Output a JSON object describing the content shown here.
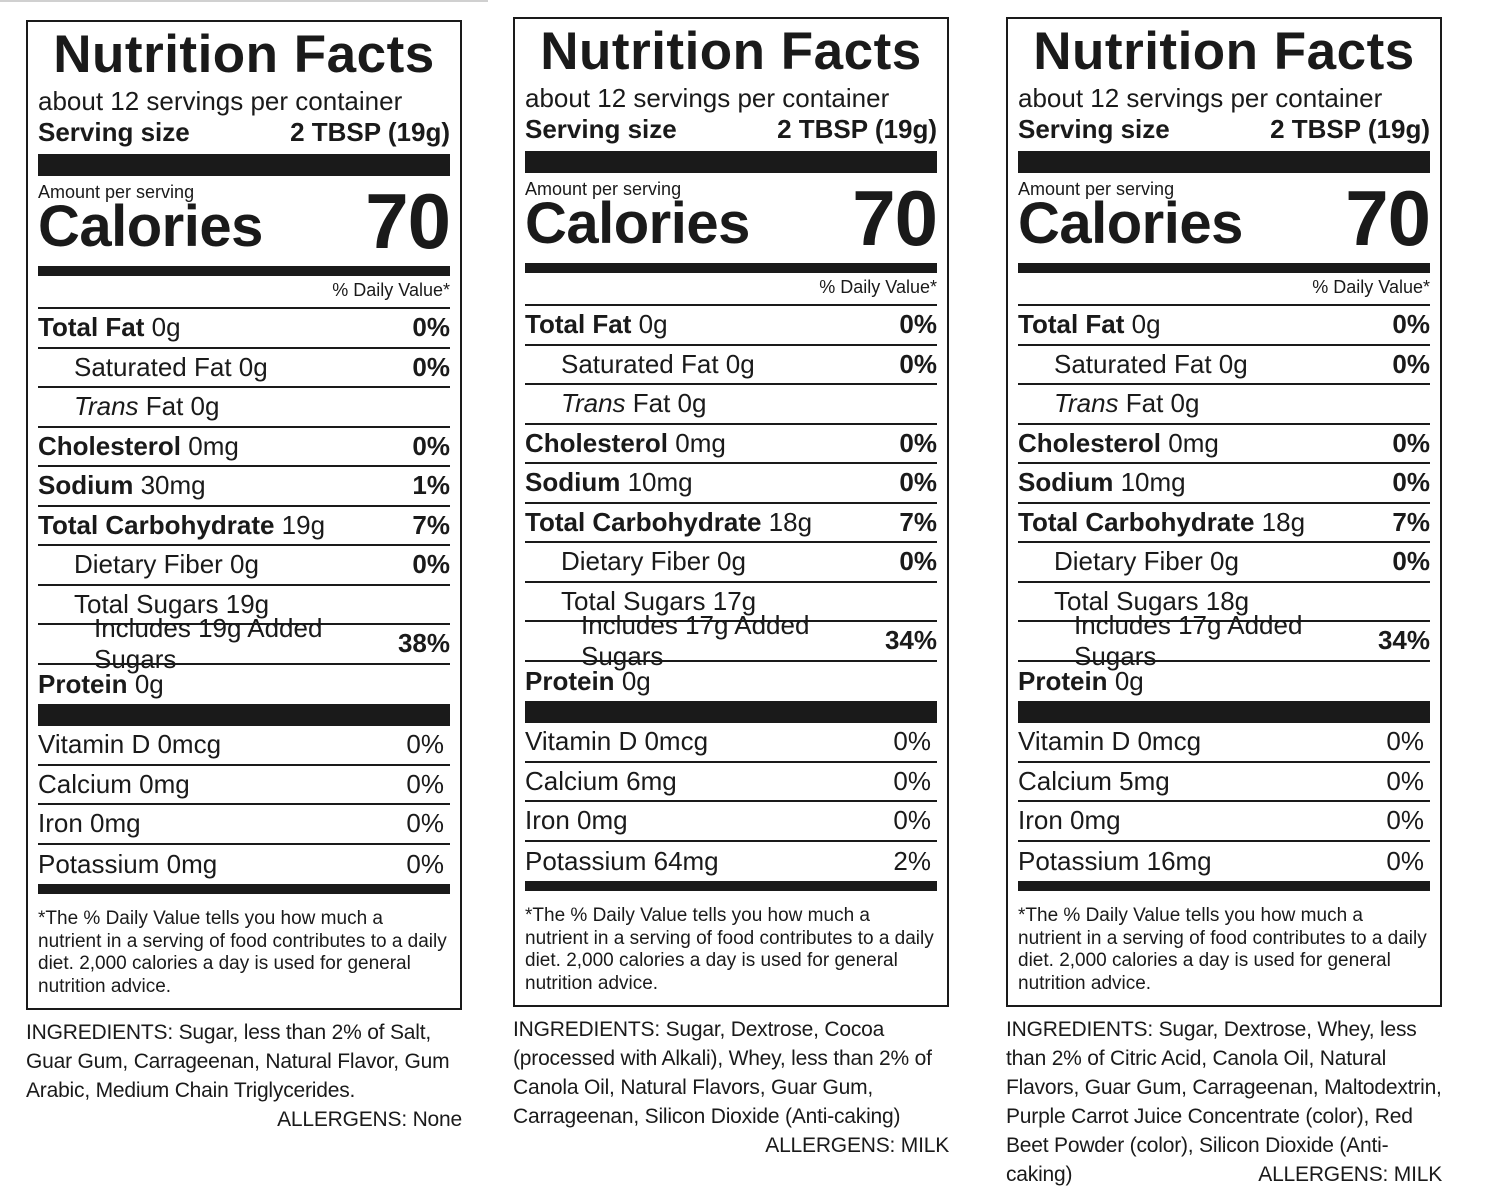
{
  "labels": [
    {
      "title": "Nutrition Facts",
      "servings": "about 12 servings per container",
      "serving_size_label": "Serving size",
      "serving_size_value": "2 TBSP (19g)",
      "amount_per_serving": "Amount per serving",
      "calories_label": "Calories",
      "calories_value": "70",
      "dv_header": "% Daily Value*",
      "total_fat": {
        "label": "Total Fat",
        "amount": "0g",
        "dv": "0%"
      },
      "saturated_fat": {
        "label": "Saturated Fat 0g",
        "dv": "0%"
      },
      "trans_fat": {
        "label_italic": "Trans",
        "label_rest": " Fat 0g"
      },
      "cholesterol": {
        "label": "Cholesterol",
        "amount": "0mg",
        "dv": "0%"
      },
      "sodium": {
        "label": "Sodium",
        "amount": "30mg",
        "dv": "1%"
      },
      "total_carb": {
        "label": "Total Carbohydrate",
        "amount": "19g",
        "dv": "7%"
      },
      "dietary_fiber": {
        "label": "Dietary Fiber 0g",
        "dv": "0%"
      },
      "total_sugars": {
        "label": "Total Sugars 19g"
      },
      "added_sugars": {
        "label": "Includes 19g Added Sugars",
        "dv": "38%"
      },
      "protein": {
        "label": "Protein",
        "amount": "0g"
      },
      "vitamins": [
        {
          "label": "Vitamin D 0mcg",
          "dv": "0%"
        },
        {
          "label": "Calcium 0mg",
          "dv": "0%"
        },
        {
          "label": "Iron 0mg",
          "dv": "0%"
        },
        {
          "label": "Potassium 0mg",
          "dv": "0%"
        }
      ],
      "footnote": "*The % Daily Value tells you how much a nutrient in a serving of food contributes to a daily diet. 2,000 calories a day is used for general nutrition advice.",
      "ingredients": "INGREDIENTS: Sugar, less than 2% of Salt, Guar Gum, Carrageenan, Natural Flavor, Gum Arabic, Medium Chain Triglycerides.",
      "allergens": "ALLERGENS: None"
    },
    {
      "title": "Nutrition Facts",
      "servings": "about 12 servings per container",
      "serving_size_label": "Serving size",
      "serving_size_value": "2 TBSP (19g)",
      "amount_per_serving": "Amount per serving",
      "calories_label": "Calories",
      "calories_value": "70",
      "dv_header": "% Daily Value*",
      "total_fat": {
        "label": "Total Fat",
        "amount": "0g",
        "dv": "0%"
      },
      "saturated_fat": {
        "label": "Saturated Fat 0g",
        "dv": "0%"
      },
      "trans_fat": {
        "label_italic": "Trans",
        "label_rest": " Fat 0g"
      },
      "cholesterol": {
        "label": "Cholesterol",
        "amount": "0mg",
        "dv": "0%"
      },
      "sodium": {
        "label": "Sodium",
        "amount": "10mg",
        "dv": "0%"
      },
      "total_carb": {
        "label": "Total Carbohydrate",
        "amount": "18g",
        "dv": "7%"
      },
      "dietary_fiber": {
        "label": "Dietary Fiber 0g",
        "dv": "0%"
      },
      "total_sugars": {
        "label": "Total Sugars 17g"
      },
      "added_sugars": {
        "label": "Includes 17g Added Sugars",
        "dv": "34%"
      },
      "protein": {
        "label": "Protein",
        "amount": "0g"
      },
      "vitamins": [
        {
          "label": "Vitamin D 0mcg",
          "dv": "0%"
        },
        {
          "label": "Calcium 6mg",
          "dv": "0%"
        },
        {
          "label": "Iron 0mg",
          "dv": "0%"
        },
        {
          "label": "Potassium 64mg",
          "dv": "2%"
        }
      ],
      "footnote": "*The % Daily Value tells you how much a nutrient in a serving of food contributes to a daily diet. 2,000 calories a day is used for general nutrition advice.",
      "ingredients": "INGREDIENTS: Sugar, Dextrose, Cocoa (processed with Alkali), Whey, less than 2% of Canola Oil, Natural Flavors, Guar Gum, Carrageenan, Silicon Dioxide (Anti-caking)",
      "allergens": "ALLERGENS: MILK"
    },
    {
      "title": "Nutrition Facts",
      "servings": "about 12 servings per container",
      "serving_size_label": "Serving size",
      "serving_size_value": "2 TBSP (19g)",
      "amount_per_serving": "Amount per serving",
      "calories_label": "Calories",
      "calories_value": "70",
      "dv_header": "% Daily Value*",
      "total_fat": {
        "label": "Total Fat",
        "amount": "0g",
        "dv": "0%"
      },
      "saturated_fat": {
        "label": "Saturated Fat 0g",
        "dv": "0%"
      },
      "trans_fat": {
        "label_italic": "Trans",
        "label_rest": " Fat 0g"
      },
      "cholesterol": {
        "label": "Cholesterol",
        "amount": "0mg",
        "dv": "0%"
      },
      "sodium": {
        "label": "Sodium",
        "amount": "10mg",
        "dv": "0%"
      },
      "total_carb": {
        "label": "Total Carbohydrate",
        "amount": "18g",
        "dv": "7%"
      },
      "dietary_fiber": {
        "label": "Dietary Fiber 0g",
        "dv": "0%"
      },
      "total_sugars": {
        "label": "Total Sugars 18g"
      },
      "added_sugars": {
        "label": "Includes 17g Added Sugars",
        "dv": "34%"
      },
      "protein": {
        "label": "Protein",
        "amount": "0g"
      },
      "vitamins": [
        {
          "label": "Vitamin D 0mcg",
          "dv": "0%"
        },
        {
          "label": "Calcium 5mg",
          "dv": "0%"
        },
        {
          "label": "Iron 0mg",
          "dv": "0%"
        },
        {
          "label": "Potassium 16mg",
          "dv": "0%"
        }
      ],
      "footnote": "*The % Daily Value tells you how much a nutrient in a serving of food contributes to a daily diet. 2,000 calories a day is used for general nutrition advice.",
      "ingredients": "INGREDIENTS: Sugar, Dextrose, Whey, less than 2% of Citric Acid, Canola Oil, Natural Flavors, Guar Gum, Carrageenan, Maltodextrin, Purple Carrot Juice Concentrate (color), Red Beet Powder (color), Silicon Dioxide (Anti-caking)",
      "allergens": "ALLERGENS: MILK"
    }
  ]
}
